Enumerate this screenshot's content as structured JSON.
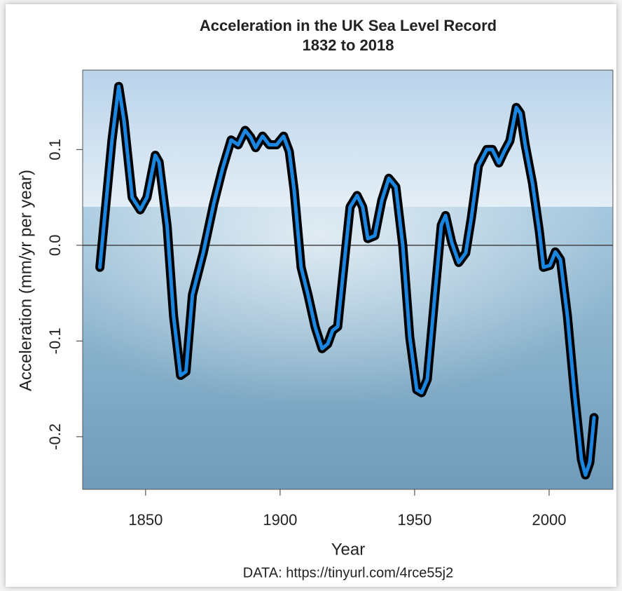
{
  "chart_data": {
    "type": "line",
    "title": "Acceleration in the UK Sea Level Record",
    "subtitle": "1832 to 2018",
    "x_label": "Year",
    "y_label": "Acceleration (mm/yr per year)",
    "caption": "DATA: https://tinyurl.com/4rce55j2",
    "xlim": [
      1826.6,
      2023.7
    ],
    "ylim": [
      -0.255,
      0.183
    ],
    "xticks": [
      1850,
      1900,
      1950,
      2000
    ],
    "yticks": [
      0.1,
      {
        "value": 0,
        "label": "0.0"
      },
      -0.1,
      -0.2
    ],
    "hline": 0,
    "series": [
      {
        "color": "#1a86e0",
        "x": [
          1833,
          1837.5,
          1840,
          1842,
          1845,
          1848,
          1850.5,
          1853.6,
          1855,
          1858,
          1860.4,
          1863,
          1865,
          1867.4,
          1871.4,
          1875.3,
          1878.6,
          1881.8,
          1884.4,
          1887,
          1889,
          1890.9,
          1893.5,
          1896,
          1898.7,
          1901.3,
          1903.4,
          1905.2,
          1907.8,
          1910.4,
          1913,
          1915.6,
          1917.7,
          1919.5,
          1921.4,
          1923.4,
          1926,
          1928.6,
          1930.7,
          1932.6,
          1935.2,
          1937.8,
          1940.4,
          1943,
          1945.6,
          1948.2,
          1950.8,
          1952.6,
          1954.7,
          1957.3,
          1959.9,
          1961.5,
          1963.8,
          1966.4,
          1969,
          1971.1,
          1973.7,
          1976.8,
          1978.9,
          1981.3,
          1983.3,
          1985.4,
          1987.8,
          1989.3,
          1991.1,
          1993.8,
          1996.4,
          1997.9,
          2000.3,
          2002.3,
          2004.2,
          2006.8,
          2009.4,
          2012,
          2013.5,
          2015.1,
          2016.7
        ],
        "values": [
          -0.023,
          0.11,
          0.166,
          0.13,
          0.05,
          0.037,
          0.05,
          0.094,
          0.087,
          0.02,
          -0.074,
          -0.136,
          -0.132,
          -0.052,
          -0.008,
          0.043,
          0.08,
          0.11,
          0.105,
          0.12,
          0.113,
          0.102,
          0.114,
          0.105,
          0.105,
          0.114,
          0.098,
          0.058,
          -0.023,
          -0.052,
          -0.085,
          -0.108,
          -0.103,
          -0.089,
          -0.085,
          -0.03,
          0.04,
          0.052,
          0.04,
          0.007,
          0.01,
          0.047,
          0.07,
          0.061,
          0,
          -0.096,
          -0.151,
          -0.154,
          -0.14,
          -0.059,
          0.021,
          0.031,
          0.003,
          -0.018,
          -0.008,
          0.029,
          0.083,
          0.1,
          0.1,
          0.086,
          0.098,
          0.109,
          0.144,
          0.138,
          0.105,
          0.065,
          0.014,
          -0.023,
          -0.021,
          -0.007,
          -0.015,
          -0.074,
          -0.154,
          -0.224,
          -0.24,
          -0.227,
          -0.18
        ]
      }
    ]
  }
}
